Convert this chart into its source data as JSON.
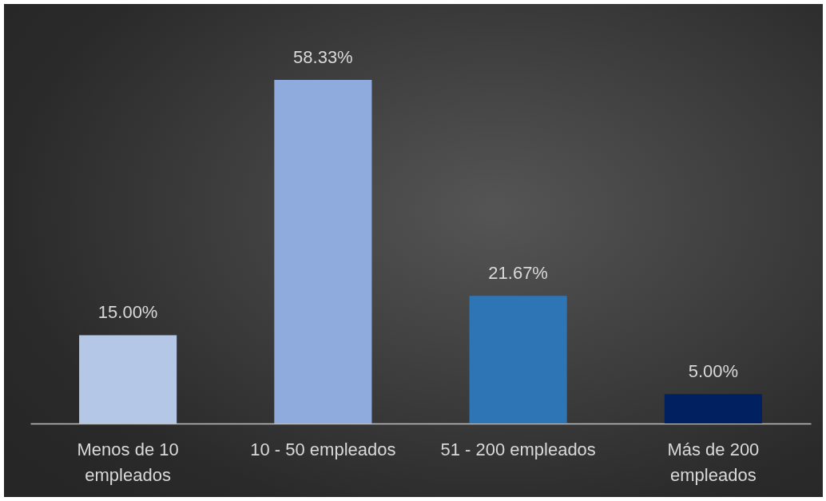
{
  "chart_data": {
    "type": "bar",
    "categories": [
      "Menos de 10 empleados",
      "10 - 50 empleados",
      "51 - 200 empleados",
      "Más de 200 empleados"
    ],
    "values": [
      15,
      58.33,
      21.67,
      5
    ],
    "colors": [
      "#b4c7e7",
      "#8faadc",
      "#2e75b6",
      "#002060"
    ],
    "value_labels": [
      "15.00%",
      "58.33%",
      "21.67%",
      "5.00%"
    ]
  }
}
